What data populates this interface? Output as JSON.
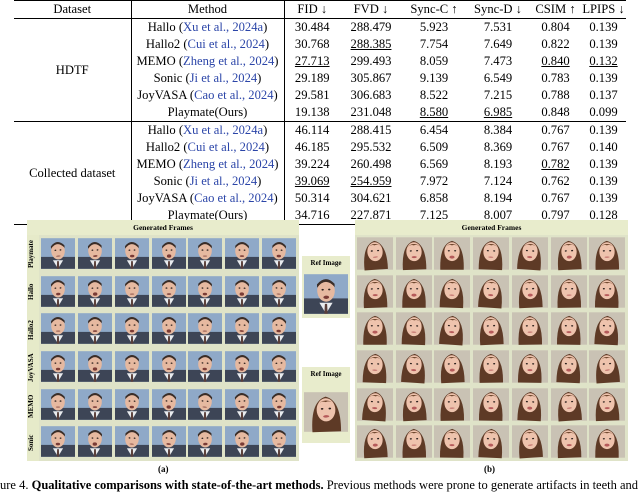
{
  "table": {
    "headers": {
      "dataset": "Dataset",
      "method": "Method",
      "fid": "FID ↓",
      "fvd": "FVD ↓",
      "sync_c": "Sync-C ↑",
      "sync_d": "Sync-D ↓",
      "csim": "CSIM ↑",
      "lpips": "LPIPS ↓"
    },
    "groups": [
      {
        "dataset": "HDTF",
        "rows": [
          {
            "name": "Hallo",
            "cite": "Xu et al., 2024a",
            "fid": "30.484",
            "fvd": "288.479",
            "sync_c": "5.923",
            "sync_d": "7.531",
            "csim": "0.804",
            "lpips": "0.139"
          },
          {
            "name": "Hallo2",
            "cite": "Cui et al., 2024",
            "fid": "30.768",
            "fvd": "288.385",
            "sync_c": "7.754",
            "sync_d": "7.649",
            "csim": "0.822",
            "lpips": "0.139"
          },
          {
            "name": "MEMO",
            "cite": "Zheng et al., 2024",
            "fid": "27.713",
            "fvd": "299.493",
            "sync_c": "8.059",
            "sync_d": "7.473",
            "csim": "0.840",
            "lpips": "0.132"
          },
          {
            "name": "Sonic",
            "cite": "Ji et al., 2024",
            "fid": "29.189",
            "fvd": "305.867",
            "sync_c": "9.139",
            "sync_d": "6.549",
            "csim": "0.783",
            "lpips": "0.139"
          },
          {
            "name": "JoyVASA",
            "cite": "Cao et al., 2024",
            "fid": "29.581",
            "fvd": "306.683",
            "sync_c": "8.522",
            "sync_d": "7.215",
            "csim": "0.788",
            "lpips": "0.137"
          },
          {
            "name": "Playmate(Ours)",
            "cite": "",
            "fid": "19.138",
            "fvd": "231.048",
            "sync_c": "8.580",
            "sync_d": "6.985",
            "csim": "0.848",
            "lpips": "0.099"
          }
        ]
      },
      {
        "dataset": "Collected dataset",
        "rows": [
          {
            "name": "Hallo",
            "cite": "Xu et al., 2024a",
            "fid": "46.114",
            "fvd": "288.415",
            "sync_c": "6.454",
            "sync_d": "8.384",
            "csim": "0.767",
            "lpips": "0.139"
          },
          {
            "name": "Hallo2",
            "cite": "Cui et al., 2024",
            "fid": "46.185",
            "fvd": "295.532",
            "sync_c": "6.509",
            "sync_d": "8.369",
            "csim": "0.767",
            "lpips": "0.140"
          },
          {
            "name": "MEMO",
            "cite": "Zheng et al., 2024",
            "fid": "39.224",
            "fvd": "260.498",
            "sync_c": "6.569",
            "sync_d": "8.193",
            "csim": "0.782",
            "lpips": "0.139"
          },
          {
            "name": "Sonic",
            "cite": "Ji et al., 2024",
            "fid": "39.069",
            "fvd": "254.959",
            "sync_c": "7.972",
            "sync_d": "7.124",
            "csim": "0.762",
            "lpips": "0.139"
          },
          {
            "name": "JoyVASA",
            "cite": "Cao et al., 2024",
            "fid": "50.314",
            "fvd": "304.621",
            "sync_c": "6.858",
            "sync_d": "8.194",
            "csim": "0.767",
            "lpips": "0.139"
          },
          {
            "name": "Playmate(Ours)",
            "cite": "",
            "fid": "34.716",
            "fvd": "227.871",
            "sync_c": "7.125",
            "sync_d": "8.007",
            "csim": "0.797",
            "lpips": "0.128"
          }
        ]
      }
    ]
  },
  "figure": {
    "panel_a": {
      "title": "Generated Frames",
      "row_labels": [
        "Playmate",
        "Hallo",
        "Hallo2",
        "JoyVASA",
        "MEMO",
        "Sonic"
      ],
      "ref_title": "Ref Image",
      "sublabel": "(a)"
    },
    "panel_b": {
      "title": "Generated Frames",
      "ref_title": "Ref Image",
      "sublabel": "(b)"
    },
    "caption_prefix": "ure 4.",
    "caption_bold": "Qualitative comparisons with state-of-the-art methods.",
    "caption_rest": " Previous methods were prone to generate artifacts in teeth and"
  }
}
